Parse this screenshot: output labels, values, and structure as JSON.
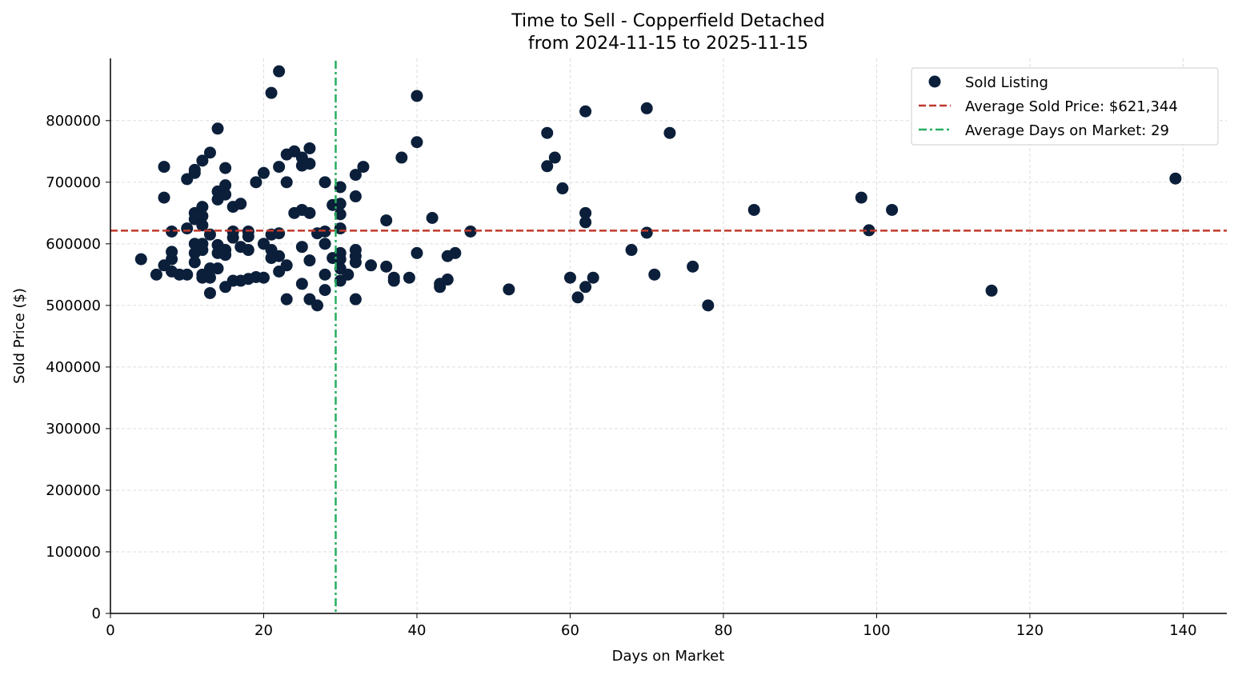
{
  "chart_data": {
    "type": "scatter",
    "title": "Time to Sell - Copperfield Detached",
    "subtitle": "from 2024-11-15 to 2025-11-15",
    "xlabel": "Days on Market",
    "ylabel": "Sold Price ($)",
    "xlim": [
      0,
      145.7
    ],
    "ylim": [
      0,
      901000
    ],
    "xticks": [
      0,
      20,
      40,
      60,
      80,
      100,
      120,
      140
    ],
    "yticks": [
      0,
      100000,
      200000,
      300000,
      400000,
      500000,
      600000,
      700000,
      800000
    ],
    "grid": true,
    "legend_position": "top-right",
    "legend": {
      "points": "Sold Listing",
      "avg_price": "Average Sold Price: $621,344",
      "avg_days": "Average Days on Market: 29"
    },
    "avg_price": 621344,
    "avg_days": 29.4,
    "colors": {
      "points": "#0b1f3a",
      "avg_price": "#c0392b",
      "avg_days": "#27ae60"
    },
    "series": [
      {
        "name": "Sold Listing",
        "points": [
          [
            4,
            575000
          ],
          [
            6,
            550000
          ],
          [
            7,
            565000
          ],
          [
            7,
            725000
          ],
          [
            7,
            675000
          ],
          [
            8,
            620000
          ],
          [
            8,
            587000
          ],
          [
            8,
            575000
          ],
          [
            8,
            555000
          ],
          [
            9,
            550000
          ],
          [
            10,
            550000
          ],
          [
            10,
            705000
          ],
          [
            10,
            625000
          ],
          [
            11,
            650000
          ],
          [
            11,
            640000
          ],
          [
            11,
            715000
          ],
          [
            11,
            720000
          ],
          [
            11,
            600000
          ],
          [
            11,
            585000
          ],
          [
            11,
            570000
          ],
          [
            12,
            660000
          ],
          [
            12,
            645000
          ],
          [
            12,
            630000
          ],
          [
            12,
            735000
          ],
          [
            12,
            600000
          ],
          [
            12,
            590000
          ],
          [
            12,
            550000
          ],
          [
            12,
            545000
          ],
          [
            13,
            748000
          ],
          [
            13,
            615000
          ],
          [
            13,
            560000
          ],
          [
            13,
            545000
          ],
          [
            13,
            520000
          ],
          [
            14,
            787000
          ],
          [
            14,
            685000
          ],
          [
            14,
            672000
          ],
          [
            14,
            598000
          ],
          [
            14,
            585000
          ],
          [
            14,
            560000
          ],
          [
            15,
            723000
          ],
          [
            15,
            695000
          ],
          [
            15,
            680000
          ],
          [
            15,
            590000
          ],
          [
            15,
            582000
          ],
          [
            15,
            530000
          ],
          [
            16,
            660000
          ],
          [
            16,
            620000
          ],
          [
            16,
            610000
          ],
          [
            16,
            540000
          ],
          [
            17,
            665000
          ],
          [
            17,
            595000
          ],
          [
            17,
            540000
          ],
          [
            18,
            620000
          ],
          [
            18,
            612000
          ],
          [
            18,
            590000
          ],
          [
            18,
            543000
          ],
          [
            19,
            700000
          ],
          [
            19,
            546000
          ],
          [
            20,
            715000
          ],
          [
            20,
            600000
          ],
          [
            20,
            545000
          ],
          [
            21,
            845000
          ],
          [
            21,
            615000
          ],
          [
            21,
            590000
          ],
          [
            21,
            577000
          ],
          [
            22,
            880000
          ],
          [
            22,
            725000
          ],
          [
            22,
            617000
          ],
          [
            22,
            580000
          ],
          [
            22,
            555000
          ],
          [
            23,
            745000
          ],
          [
            23,
            700000
          ],
          [
            23,
            565000
          ],
          [
            23,
            510000
          ],
          [
            24,
            750000
          ],
          [
            24,
            650000
          ],
          [
            25,
            740000
          ],
          [
            25,
            727000
          ],
          [
            25,
            655000
          ],
          [
            25,
            595000
          ],
          [
            25,
            535000
          ],
          [
            26,
            755000
          ],
          [
            26,
            730000
          ],
          [
            26,
            650000
          ],
          [
            26,
            573000
          ],
          [
            26,
            510000
          ],
          [
            27,
            500000
          ],
          [
            27,
            617000
          ],
          [
            28,
            700000
          ],
          [
            28,
            620000
          ],
          [
            28,
            600000
          ],
          [
            28,
            550000
          ],
          [
            28,
            525000
          ],
          [
            29,
            663000
          ],
          [
            29,
            577000
          ],
          [
            30,
            692000
          ],
          [
            30,
            665000
          ],
          [
            30,
            648000
          ],
          [
            30,
            625000
          ],
          [
            30,
            585000
          ],
          [
            30,
            575000
          ],
          [
            30,
            560000
          ],
          [
            30,
            540000
          ],
          [
            31,
            550000
          ],
          [
            32,
            712000
          ],
          [
            32,
            677000
          ],
          [
            32,
            590000
          ],
          [
            32,
            580000
          ],
          [
            32,
            570000
          ],
          [
            32,
            510000
          ],
          [
            33,
            725000
          ],
          [
            34,
            565000
          ],
          [
            36,
            638000
          ],
          [
            36,
            563000
          ],
          [
            37,
            545000
          ],
          [
            37,
            540000
          ],
          [
            38,
            740000
          ],
          [
            39,
            545000
          ],
          [
            40,
            840000
          ],
          [
            40,
            765000
          ],
          [
            40,
            585000
          ],
          [
            42,
            642000
          ],
          [
            43,
            535000
          ],
          [
            43,
            530000
          ],
          [
            44,
            580000
          ],
          [
            44,
            542000
          ],
          [
            45,
            585000
          ],
          [
            47,
            620000
          ],
          [
            52,
            526000
          ],
          [
            57,
            780000
          ],
          [
            57,
            726000
          ],
          [
            58,
            740000
          ],
          [
            59,
            690000
          ],
          [
            60,
            545000
          ],
          [
            61,
            513000
          ],
          [
            62,
            815000
          ],
          [
            62,
            650000
          ],
          [
            62,
            635000
          ],
          [
            62,
            530000
          ],
          [
            63,
            545000
          ],
          [
            68,
            590000
          ],
          [
            70,
            820000
          ],
          [
            70,
            618000
          ],
          [
            71,
            550000
          ],
          [
            73,
            780000
          ],
          [
            76,
            563000
          ],
          [
            78,
            500000
          ],
          [
            84,
            655000
          ],
          [
            98,
            675000
          ],
          [
            99,
            622000
          ],
          [
            102,
            655000
          ],
          [
            115,
            524000
          ],
          [
            139,
            706000
          ]
        ]
      }
    ]
  }
}
